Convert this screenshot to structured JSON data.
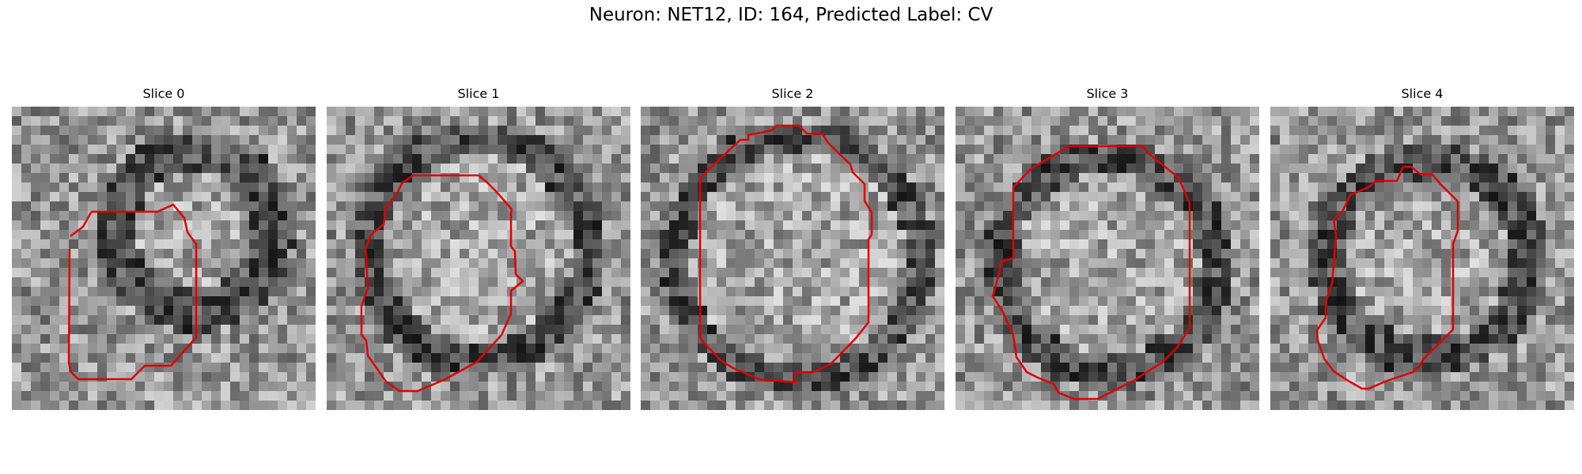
{
  "figure": {
    "title": "Neuron: NET12, ID: 164, Predicted Label: CV"
  },
  "overlay_color": "#e00000",
  "panels": [
    {
      "title": "Slice 0",
      "seed": 11,
      "center": [
        0.6,
        0.41
      ],
      "radius": 0.23,
      "ring": 0.1,
      "dark_ring": true
    },
    {
      "title": "Slice 1",
      "seed": 27,
      "center": [
        0.5,
        0.47
      ],
      "radius": 0.34,
      "ring": 0.08,
      "dark_ring": true
    },
    {
      "title": "Slice 2",
      "seed": 43,
      "center": [
        0.52,
        0.5
      ],
      "radius": 0.38,
      "ring": 0.07,
      "dark_ring": true
    },
    {
      "title": "Slice 3",
      "seed": 59,
      "center": [
        0.5,
        0.52
      ],
      "radius": 0.33,
      "ring": 0.08,
      "dark_ring": true
    },
    {
      "title": "Slice 4",
      "seed": 71,
      "center": [
        0.52,
        0.5
      ],
      "radius": 0.3,
      "ring": 0.09,
      "dark_ring": true
    }
  ]
}
